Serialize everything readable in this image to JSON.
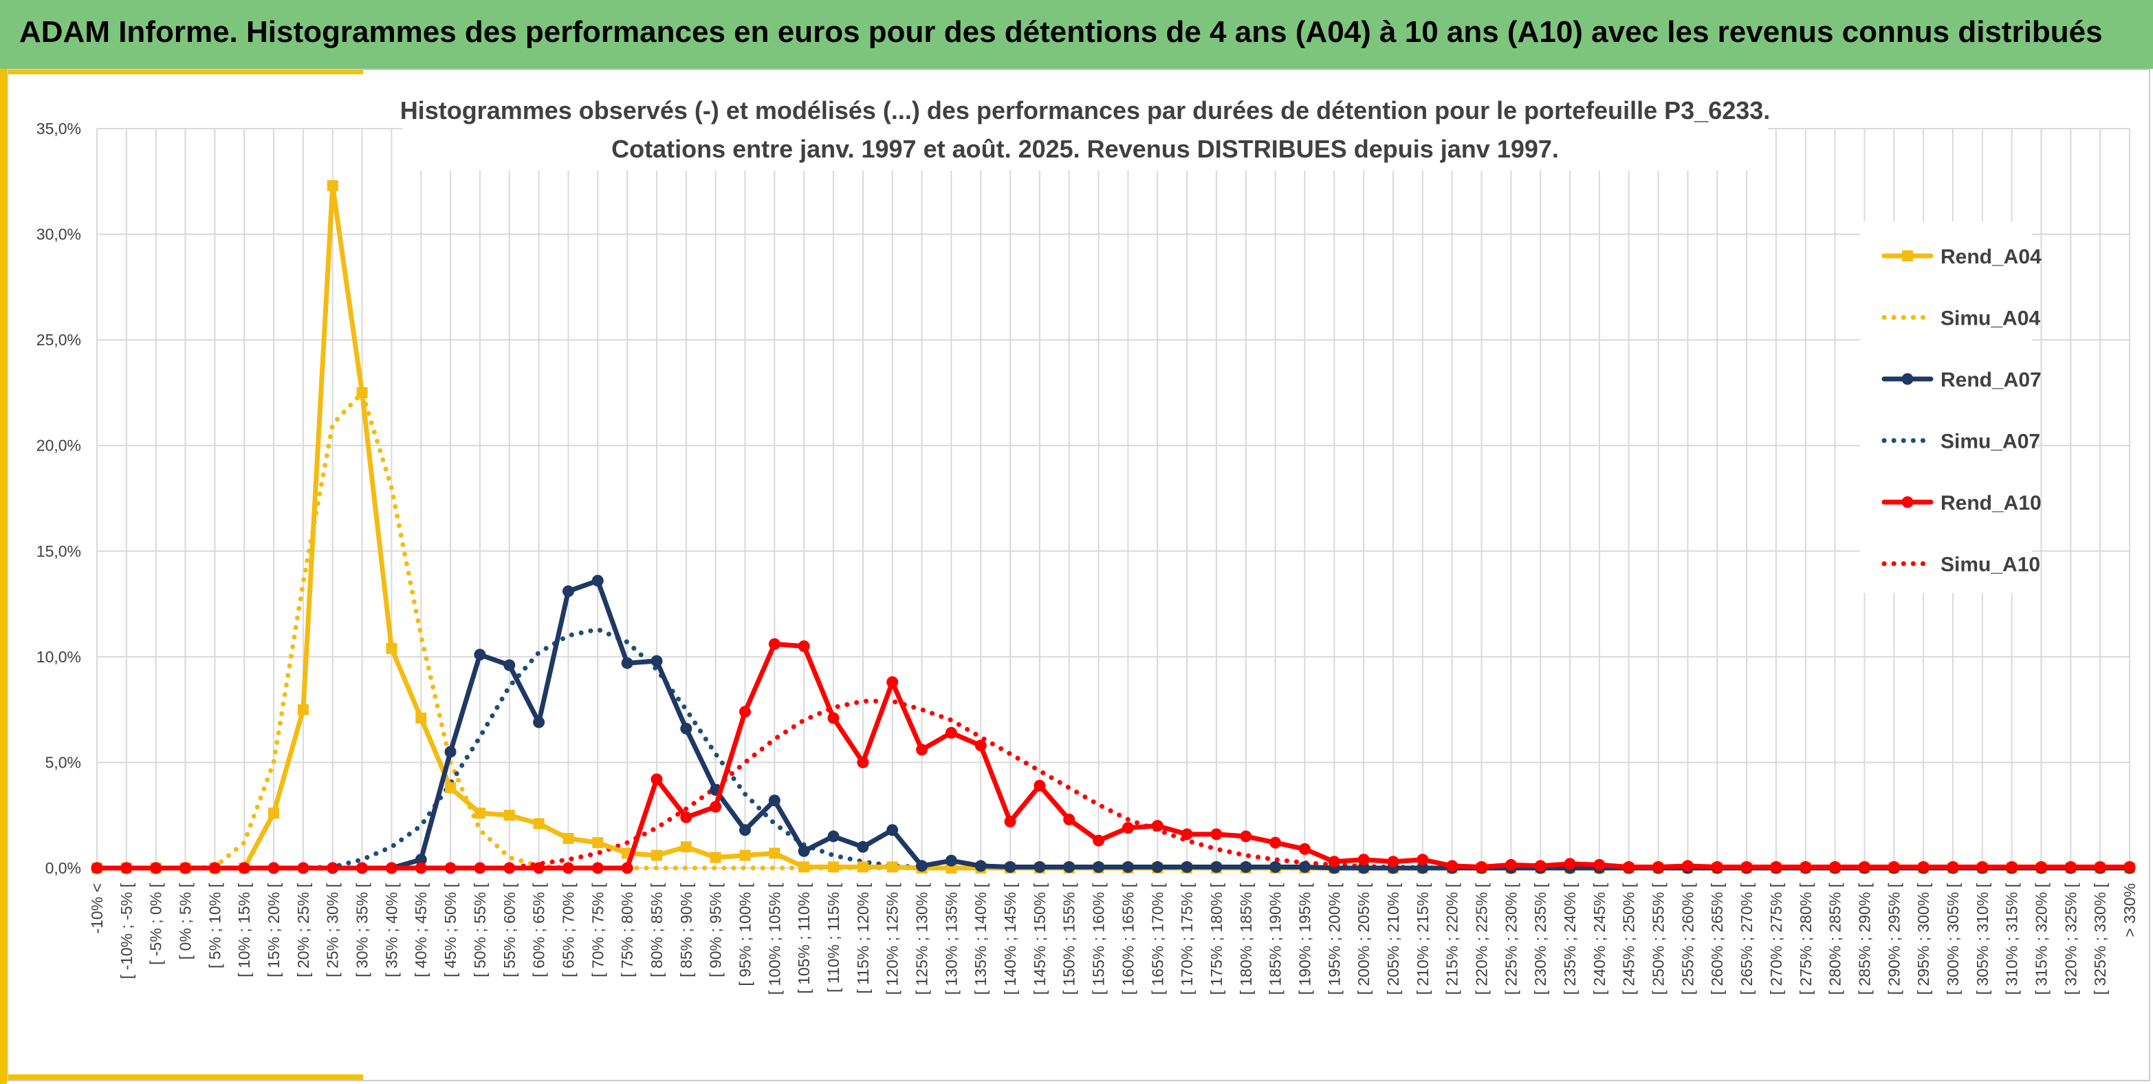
{
  "header": {
    "title": "ADAM Informe. Histogrammes des performances en euros pour des détentions de 4 ans (A04) à 10 ans (A10) avec les revenus connus distribués"
  },
  "chart_data": {
    "type": "line",
    "title_lines": [
      "Histogrammes observés (-) et modélisés (...) des performances par durées de détention pour le portefeuille P3_6233.",
      "Cotations entre janv. 1997 et août. 2025. Revenus DISTRIBUES depuis janv 1997."
    ],
    "xlabel": "",
    "ylabel": "",
    "ylim": [
      0,
      35
    ],
    "yticks": [
      "0,0%",
      "5,0%",
      "10,0%",
      "15,0%",
      "20,0%",
      "25,0%",
      "30,0%",
      "35,0%"
    ],
    "grid": true,
    "legend_position": "right",
    "categories": [
      "-10% <",
      "[ -10% ; -5% [",
      "[ -5% ; 0% [",
      "[ 0% ; 5% [",
      "[ 5% ; 10% [",
      "[ 10% ; 15% [",
      "[ 15% ; 20% [",
      "[ 20% ; 25% [",
      "[ 25% ; 30% [",
      "[ 30% ; 35% [",
      "[ 35% ; 40% [",
      "[ 40% ; 45% [",
      "[ 45% ; 50% [",
      "[ 50% ; 55% [",
      "[ 55% ; 60% [",
      "[ 60% ; 65% [",
      "[ 65% ; 70% [",
      "[ 70% ; 75% [",
      "[ 75% ; 80% [",
      "[ 80% ; 85% [",
      "[ 85% ; 90% [",
      "[ 90% ; 95% [",
      "[ 95% ; 100% [",
      "[ 100% ; 105% [",
      "[ 105% ; 110% [",
      "[ 110% ; 115% [",
      "[ 115% ; 120% [",
      "[ 120% ; 125% [",
      "[ 125% ; 130% [",
      "[ 130% ; 135% [",
      "[ 135% ; 140% [",
      "[ 140% ; 145% [",
      "[ 145% ; 150% [",
      "[ 150% ; 155% [",
      "[ 155% ; 160% [",
      "[ 160% ; 165% [",
      "[ 165% ; 170% [",
      "[ 170% ; 175% [",
      "[ 175% ; 180% [",
      "[ 180% ; 185% [",
      "[ 185% ; 190% [",
      "[ 190% ; 195% [",
      "[ 195% ; 200% [",
      "[ 200% ; 205% [",
      "[ 205% ; 210% [",
      "[ 210% ; 215% [",
      "[ 215% ; 220% [",
      "[ 220% ; 225% [",
      "[ 225% ; 230% [",
      "[ 230% ; 235% [",
      "[ 235% ; 240% [",
      "[ 240% ; 245% [",
      "[ 245% ; 250% [",
      "[ 250% ; 255% [",
      "[ 255% ; 260% [",
      "[ 260% ; 265% [",
      "[ 265% ; 270% [",
      "[ 270% ; 275% [",
      "[ 275% ; 280% [",
      "[ 280% ; 285% [",
      "[ 285% ; 290% [",
      "[ 290% ; 295% [",
      "[ 295% ; 300% [",
      "[ 300% ; 305% [",
      "[ 305% ; 310% [",
      "[ 310% ; 315% [",
      "[ 315% ; 320% [",
      "[ 320% ; 325% [",
      "[ 325% ; 330% [",
      "> 330%"
    ],
    "series": [
      {
        "name": "Rend_A04",
        "style": "solid",
        "marker": "square",
        "color": "#f4bb11",
        "values": [
          0,
          0,
          0,
          0,
          0,
          0,
          2.6,
          7.5,
          32.3,
          22.5,
          10.4,
          7.1,
          3.8,
          2.6,
          2.5,
          2.1,
          1.4,
          1.2,
          0.7,
          0.6,
          1.0,
          0.5,
          0.6,
          0.7,
          0.05,
          0.05,
          0.05,
          0.05,
          0,
          0,
          0,
          0,
          0,
          0,
          0,
          0,
          0,
          0,
          0,
          0,
          0,
          0,
          0,
          0,
          0,
          0,
          0,
          0,
          0,
          0,
          0,
          0,
          0,
          0,
          0,
          0,
          0,
          0,
          0,
          0,
          0,
          0,
          0,
          0,
          0,
          0,
          0,
          0,
          0,
          0
        ]
      },
      {
        "name": "Simu_A04",
        "style": "dotted",
        "marker": "none",
        "color": "#f4bb11",
        "values": [
          0,
          0,
          0,
          0,
          0.05,
          1.2,
          5.0,
          13.5,
          21.0,
          22.5,
          18.0,
          11.0,
          5.0,
          1.8,
          0.5,
          0.1,
          0.02,
          0,
          0,
          0,
          0,
          0,
          0,
          0,
          0,
          0,
          0,
          0,
          0,
          0,
          0,
          0,
          0,
          0,
          0,
          0,
          0,
          0,
          0,
          0,
          0,
          0,
          0,
          0,
          0,
          0,
          0,
          0,
          0,
          0,
          0,
          0,
          0,
          0,
          0,
          0,
          0,
          0,
          0,
          0,
          0,
          0,
          0,
          0,
          0,
          0,
          0,
          0,
          0,
          0
        ]
      },
      {
        "name": "Rend_A07",
        "style": "solid",
        "marker": "circle",
        "color": "#1f3864",
        "values": [
          0,
          0,
          0,
          0,
          0,
          0,
          0,
          0,
          0,
          0,
          0,
          0.4,
          5.5,
          10.1,
          9.6,
          6.9,
          13.1,
          13.6,
          9.7,
          9.8,
          6.6,
          3.7,
          1.8,
          3.2,
          0.8,
          1.5,
          1.0,
          1.8,
          0.1,
          0.35,
          0.1,
          0.05,
          0.05,
          0.05,
          0.05,
          0.05,
          0.05,
          0.05,
          0.05,
          0.05,
          0.05,
          0.05,
          0,
          0,
          0,
          0,
          0,
          0,
          0,
          0,
          0,
          0,
          0,
          0,
          0,
          0,
          0,
          0,
          0,
          0,
          0,
          0,
          0,
          0,
          0,
          0,
          0,
          0,
          0,
          0
        ]
      },
      {
        "name": "Simu_A07",
        "style": "dotted",
        "marker": "none",
        "color": "#1f4e79",
        "values": [
          0,
          0,
          0,
          0,
          0,
          0,
          0,
          0,
          0.05,
          0.4,
          1.0,
          2.0,
          4.0,
          6.2,
          8.6,
          10.2,
          11.0,
          11.3,
          10.7,
          9.4,
          7.5,
          5.4,
          3.5,
          2.1,
          1.1,
          0.6,
          0.3,
          0.1,
          0.05,
          0.02,
          0,
          0,
          0,
          0,
          0,
          0,
          0,
          0,
          0,
          0,
          0,
          0,
          0,
          0,
          0,
          0,
          0,
          0,
          0,
          0,
          0,
          0,
          0,
          0,
          0,
          0,
          0,
          0,
          0,
          0,
          0,
          0,
          0,
          0,
          0,
          0,
          0,
          0,
          0,
          0
        ]
      },
      {
        "name": "Rend_A10",
        "style": "solid",
        "marker": "circle",
        "color": "#ff0000",
        "values": [
          0,
          0,
          0,
          0,
          0,
          0,
          0,
          0,
          0,
          0,
          0,
          0,
          0,
          0,
          0,
          0,
          0,
          0,
          0,
          4.2,
          2.4,
          2.9,
          7.4,
          10.6,
          10.5,
          7.1,
          5.0,
          8.8,
          5.6,
          6.4,
          5.8,
          2.2,
          3.9,
          2.3,
          1.3,
          1.9,
          2.0,
          1.6,
          1.6,
          1.5,
          1.2,
          0.9,
          0.3,
          0.4,
          0.3,
          0.4,
          0.1,
          0.05,
          0.15,
          0.1,
          0.2,
          0.15,
          0.05,
          0.05,
          0.1,
          0.05,
          0.05,
          0.05,
          0.05,
          0.05,
          0.05,
          0.05,
          0.05,
          0.05,
          0.05,
          0.05,
          0.05,
          0.05,
          0.05,
          0.05
        ]
      },
      {
        "name": "Simu_A10",
        "style": "dotted",
        "marker": "none",
        "color": "#ff0000",
        "values": [
          0,
          0,
          0,
          0,
          0,
          0,
          0,
          0,
          0,
          0,
          0,
          0,
          0,
          0,
          0,
          0.2,
          0.4,
          0.7,
          1.2,
          1.9,
          2.8,
          3.8,
          5.0,
          6.1,
          7.0,
          7.6,
          7.9,
          7.9,
          7.5,
          7.0,
          6.2,
          5.4,
          4.6,
          3.8,
          3.0,
          2.3,
          1.8,
          1.3,
          0.9,
          0.6,
          0.4,
          0.25,
          0.15,
          0.08,
          0.04,
          0.02,
          0,
          0,
          0,
          0,
          0,
          0,
          0,
          0,
          0,
          0,
          0,
          0,
          0,
          0,
          0,
          0,
          0,
          0,
          0,
          0,
          0,
          0,
          0,
          0
        ]
      }
    ]
  }
}
